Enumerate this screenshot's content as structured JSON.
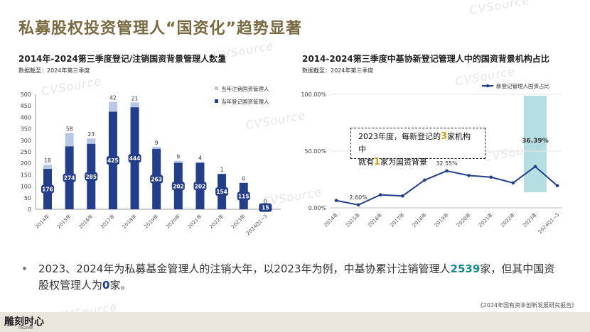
{
  "title": "私募股权投资管理人“国资化”趋势显著",
  "left_panel": {
    "title": "2014年-2024第三季度登记/注销国资背景管理人数量",
    "subtitle": "数据截至：2024年第三季度"
  },
  "right_panel": {
    "title": "2014-2024第三季度中基协新登记管理人中的国资背景机构占比",
    "subtitle": "数据截至：2024年第三季度"
  },
  "annotation": {
    "line1_a": "2023年度，每新登记的",
    "line1_num": "3",
    "line1_b": "家机构中",
    "line2_a": "就有",
    "line2_num": "1",
    "line2_b": "家为国资背景"
  },
  "bullet": {
    "text_a": "2023、2024年为私募基金管理人的注销大年，以2023年为例，中基协累计注销管理人",
    "num_a": "2539",
    "text_b": "家，但其中国资股权管理人为",
    "num_b": "0",
    "text_c": "家。"
  },
  "source": "《2024年国有资本创新发展研究报告》",
  "logo": {
    "text": "雕刻时心",
    "sub": "PAGEWE"
  },
  "watermark": "CVSource",
  "colors": {
    "registered": "#233f8c",
    "cancelled": "#b9c7e6",
    "line": "#233f8c",
    "highlight": "#9cd3d8"
  },
  "chart_data": [
    {
      "type": "bar",
      "stacked": true,
      "categories": [
        "2014年",
        "2015年",
        "2016年",
        "2017年",
        "2018年",
        "2019年",
        "2020年",
        "2021年",
        "2022年",
        "2023年",
        "2024Q1~3"
      ],
      "series": [
        {
          "name": "当年登记国资管理人",
          "values": [
            176,
            274,
            285,
            425,
            444,
            263,
            202,
            202,
            154,
            115,
            15
          ]
        },
        {
          "name": "当年注销国资管理人",
          "values": [
            18,
            58,
            23,
            42,
            21,
            9,
            9,
            4,
            1,
            0,
            0
          ]
        }
      ],
      "yticks": [
        0,
        50,
        100,
        150,
        200,
        250,
        300,
        350,
        400,
        450,
        500
      ],
      "ylim": [
        0,
        500
      ],
      "legend": "top-right"
    },
    {
      "type": "line",
      "categories": [
        "2014年",
        "2015年",
        "2016年",
        "2017年",
        "2018年",
        "2019年",
        "2020年",
        "2021年",
        "2022年",
        "2023年",
        "2024Q1~3"
      ],
      "series": [
        {
          "name": "新登记管理人国资占比",
          "values": [
            6.5,
            2.6,
            11.5,
            10.5,
            24.5,
            32.55,
            28.5,
            27.0,
            22.0,
            36.39,
            19.5
          ]
        }
      ],
      "labels": [
        {
          "index": 1,
          "text": "2.60%"
        },
        {
          "index": 5,
          "text": "32.55%"
        },
        {
          "index": 9,
          "text": "36.39%"
        }
      ],
      "yticks": [
        "0.00%",
        "50.00%",
        "100.00%"
      ],
      "ylim": [
        0,
        100
      ],
      "highlight_index": 9,
      "legend": "top"
    }
  ]
}
